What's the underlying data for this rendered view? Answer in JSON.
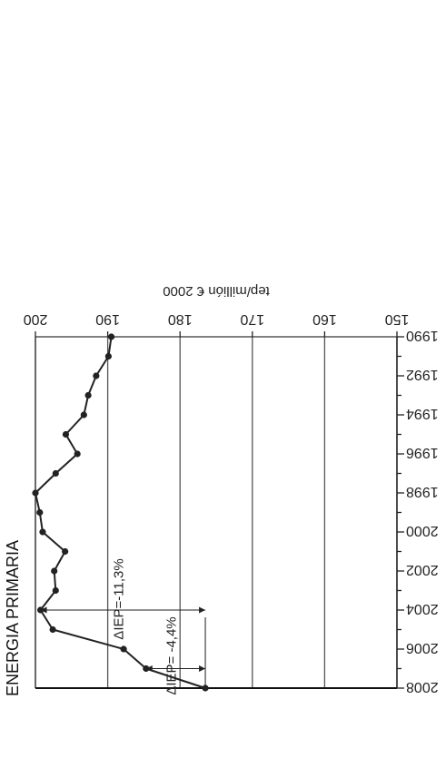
{
  "chart_data": {
    "type": "line",
    "title": "ENERGIA PRIMARIA",
    "xlabel": "",
    "ylabel": "tep/millión € 2000",
    "x_ticks": [
      "1990",
      "1992",
      "1994",
      "1996",
      "1998",
      "2000",
      "2002",
      "2004",
      "2006",
      "2008"
    ],
    "y_ticks": [
      "200",
      "190",
      "180",
      "170",
      "160",
      "150"
    ],
    "xlim": [
      1990,
      2008
    ],
    "ylim": [
      150,
      200
    ],
    "grid": "horizontal",
    "series": [
      {
        "x": [
          1990,
          1991,
          1992,
          1993,
          1994,
          1995,
          1996,
          1997,
          1998,
          1999,
          2000,
          2001,
          2002,
          2003,
          2004,
          2005,
          2006,
          2007,
          2008
        ],
        "values": [
          189.5,
          189.9,
          191.6,
          192.7,
          193.3,
          195.8,
          194.2,
          197.2,
          200.0,
          199.4,
          199.0,
          195.9,
          197.4,
          197.2,
          199.3,
          197.6,
          187.8,
          184.7,
          176.5
        ],
        "color": "#222222"
      }
    ],
    "annotations": [
      {
        "label": "ΔIEP=-11,3%",
        "from_year": 2004,
        "to_year": 2004,
        "from_value": 199.3,
        "to_value": 176.5
      },
      {
        "label": "ΔIEP= -4,4%",
        "from_year": 2007,
        "to_year": 2007,
        "from_value": 184.7,
        "to_value": 176.5
      }
    ]
  }
}
